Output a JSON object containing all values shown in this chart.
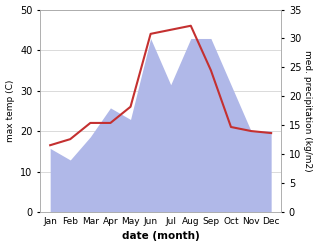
{
  "months": [
    "Jan",
    "Feb",
    "Mar",
    "Apr",
    "May",
    "Jun",
    "Jul",
    "Aug",
    "Sep",
    "Oct",
    "Nov",
    "Dec"
  ],
  "temperature": [
    16.5,
    18.0,
    22.0,
    22.0,
    26.0,
    44.0,
    45.0,
    46.0,
    35.0,
    21.0,
    20.0,
    19.5
  ],
  "precipitation": [
    11.0,
    9.0,
    13.0,
    18.0,
    16.0,
    30.0,
    22.0,
    30.0,
    30.0,
    22.0,
    14.0,
    14.0
  ],
  "temp_color": "#c43030",
  "precip_color": "#b0b8e8",
  "temp_ylim": [
    0,
    50
  ],
  "precip_ylim": [
    0,
    35
  ],
  "temp_yticks": [
    0,
    10,
    20,
    30,
    40,
    50
  ],
  "precip_yticks": [
    0,
    5,
    10,
    15,
    20,
    25,
    30,
    35
  ],
  "xlabel": "date (month)",
  "ylabel_left": "max temp (C)",
  "ylabel_right": "med. precipitation (kg/m2)",
  "bg_color": "#ffffff",
  "grid_color": "#cccccc"
}
